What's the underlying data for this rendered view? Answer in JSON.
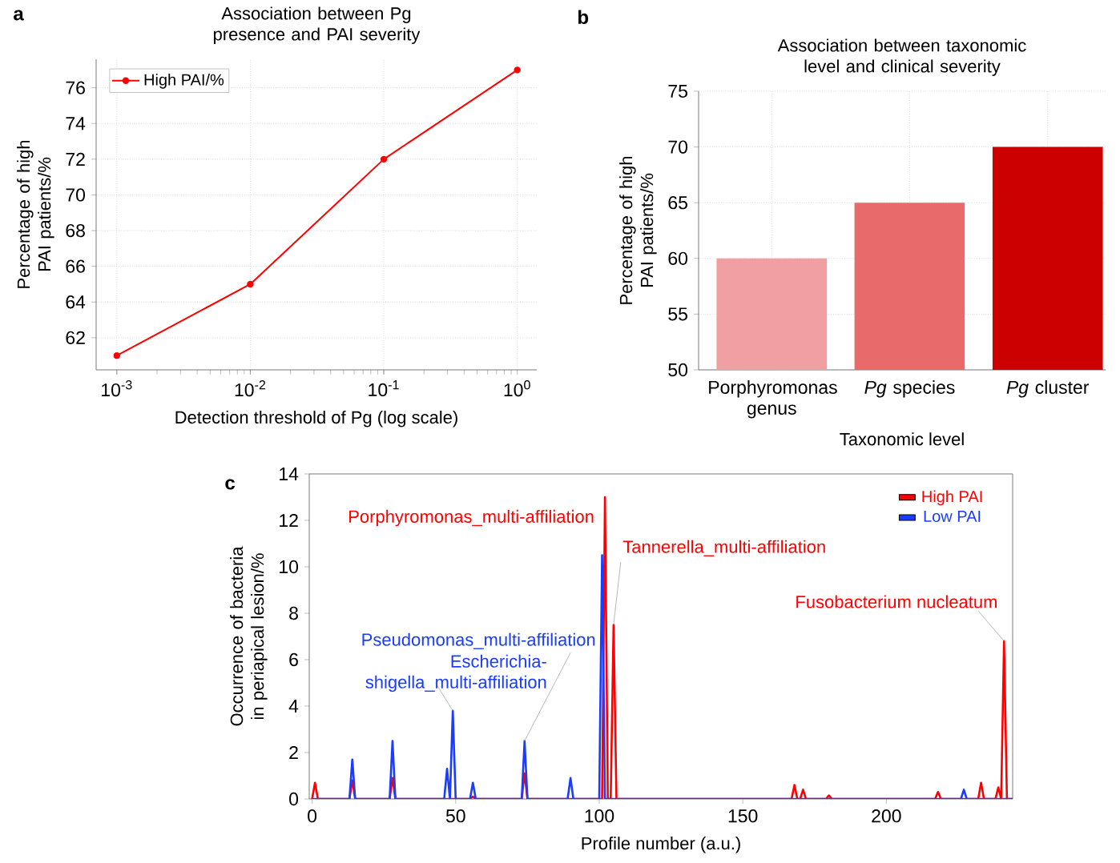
{
  "chart_data": [
    {
      "type": "line",
      "title": "Association between Pg presence and PAI severity",
      "xlabel": "Detection threshold of Pg (log scale)",
      "ylabel": "Percentage of high PAI patients/%",
      "x": [
        0.001,
        0.01,
        0.1,
        1
      ],
      "series": [
        {
          "name": "High PAI/%",
          "color": "#ff0000",
          "values": [
            61,
            65,
            72,
            77
          ]
        }
      ],
      "log": "x",
      "xlim": [
        0.0007,
        1.4
      ],
      "ylim": [
        60.2,
        77.6
      ],
      "xticks": [
        {
          "value": 0.001,
          "label": "10$^{-3}$"
        },
        {
          "value": 0.01,
          "label": "10$^{-2}$"
        },
        {
          "value": 0.1,
          "label": "10$^{-1}$"
        },
        {
          "value": 1,
          "label": "10$^{0}$"
        }
      ],
      "yticks": [
        62,
        64,
        66,
        68,
        70,
        72,
        74,
        76
      ],
      "grid": true,
      "legend": "top left",
      "marker": "circle",
      "annotations": [
        "a"
      ]
    },
    {
      "type": "bar",
      "title": "Association between taxonomic level and clinical severity",
      "xlabel": "Taxonomic level",
      "ylabel": "Percentage of high PAI patients/%",
      "categories": [
        "Porphyromonas genus",
        "*Pg* species",
        "*Pg* cluster"
      ],
      "values": [
        60,
        65,
        70
      ],
      "colors": [
        "#f0a0a2",
        "#e86a6a",
        "#cc0000"
      ],
      "ylim": [
        50,
        75
      ],
      "yticks": [
        50,
        55,
        60,
        65,
        70,
        75
      ],
      "grid": true,
      "annotations": [
        "b"
      ]
    },
    {
      "type": "line",
      "xlabel": "Profile number (a.u.)",
      "ylabel": "Occurrence of bacteria in periapical lesion/%",
      "series": [
        {
          "name": "High PAI",
          "color": "#ff0000",
          "x": [
            0,
            1,
            2,
            13,
            14,
            15,
            27,
            28,
            29,
            55,
            56,
            57,
            73,
            74,
            75,
            101,
            102,
            103,
            104,
            105,
            106,
            167,
            168,
            169,
            170,
            171,
            172,
            179,
            180,
            181,
            217,
            218,
            219,
            232,
            233,
            234,
            238,
            239,
            240,
            241,
            242,
            244
          ],
          "values": [
            0,
            0.7,
            0,
            0,
            0.8,
            0,
            0,
            0.9,
            0,
            0,
            0.1,
            0,
            0,
            1.1,
            0,
            0,
            13,
            0,
            0,
            7.5,
            0,
            0,
            0.6,
            0,
            0,
            0.4,
            0,
            0,
            0.15,
            0,
            0,
            0.3,
            0,
            0,
            0.7,
            0,
            0,
            0.5,
            0,
            6.8,
            0,
            0
          ]
        },
        {
          "name": "Low PAI",
          "color": "#1a3cff",
          "x": [
            0,
            13,
            14,
            15,
            27,
            28,
            29,
            46,
            47,
            48,
            49,
            50,
            55,
            56,
            57,
            73,
            74,
            75,
            89,
            90,
            91,
            100,
            101,
            102,
            226,
            227,
            228,
            244
          ],
          "values": [
            0,
            0,
            1.7,
            0,
            0,
            2.5,
            0,
            0,
            1.3,
            0,
            3.8,
            0,
            0,
            0.7,
            0,
            0,
            2.5,
            0,
            0,
            0.9,
            0,
            0,
            10.5,
            0,
            0,
            0.4,
            0,
            0
          ]
        }
      ],
      "xlim": [
        -1,
        244
      ],
      "ylim": [
        0,
        14
      ],
      "xticks": [
        0,
        50,
        100,
        150,
        200
      ],
      "yticks": [
        0,
        2,
        4,
        6,
        8,
        10,
        12,
        14
      ],
      "legend": "top right",
      "annotations": [
        "c",
        {
          "text": "Porphyromonas_multi-affiliation",
          "x": 102,
          "y": 13
        },
        {
          "text": "Tannerella_multi-affiliation",
          "x": 105,
          "y": 7.5
        },
        {
          "text": "Fusobacterium nucleatum",
          "x": 241,
          "y": 6.8
        },
        {
          "text": "Pseudomonas_multi-affiliation",
          "x": 74,
          "y": 2.5
        },
        {
          "text": "Escherichia-shigella_multi-affiliation",
          "x": 49,
          "y": 3.8
        }
      ]
    }
  ]
}
